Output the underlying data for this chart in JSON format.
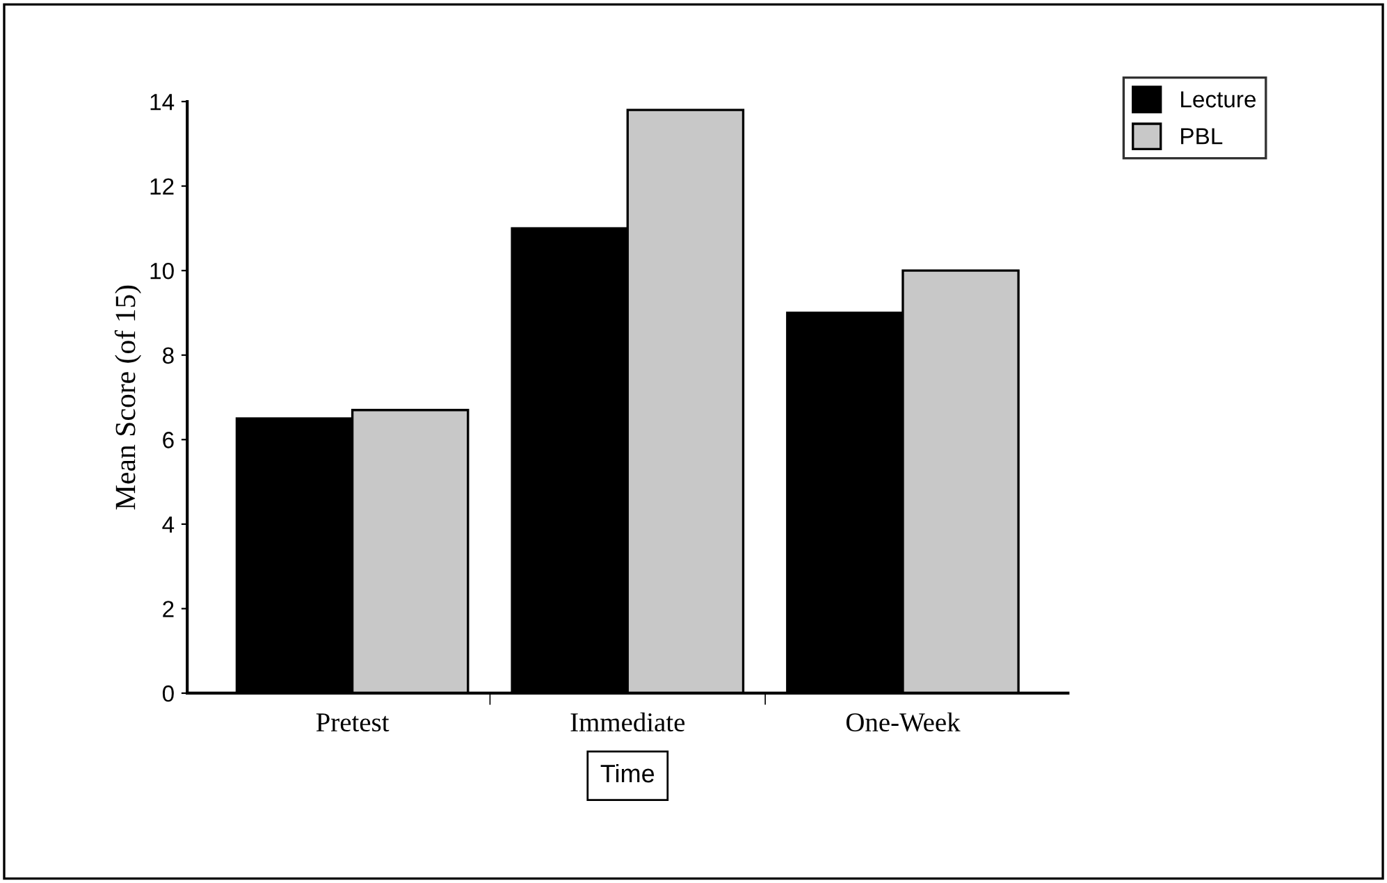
{
  "chart_data": {
    "type": "bar",
    "xlabel": "Time",
    "ylabel": "Mean Score (of 15)",
    "categories": [
      "Pretest",
      "Immediate",
      "One-Week"
    ],
    "series": [
      {
        "name": "Lecture",
        "color": "#000000",
        "values": [
          6.5,
          11.0,
          9.0
        ]
      },
      {
        "name": "PBL",
        "color": "#c8c8c8",
        "values": [
          6.7,
          13.8,
          10.0
        ]
      }
    ],
    "ylim": [
      0,
      14
    ],
    "yticks": [
      0,
      2,
      4,
      6,
      8,
      10,
      12,
      14
    ],
    "grid": false,
    "legend": "top right"
  }
}
